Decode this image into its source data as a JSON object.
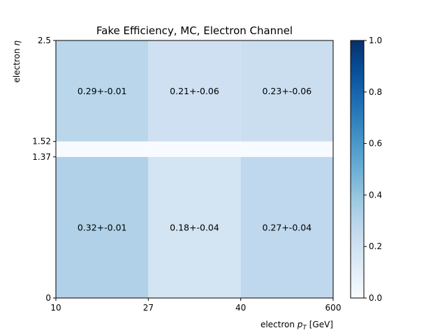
{
  "chart_data": {
    "type": "heatmap",
    "title": "Fake Efficiency, MC, Electron Channel",
    "xlabel_prefix": "electron ",
    "xlabel_var": "p",
    "xlabel_sub": "T",
    "xlabel_suffix": " [GeV]",
    "ylabel_prefix": "electron ",
    "ylabel_var": "η",
    "x_edges": [
      10,
      27,
      40,
      600
    ],
    "x_tick_labels": [
      "10",
      "27",
      "40",
      "600"
    ],
    "y_edges": [
      0,
      1.37,
      1.52,
      2.5
    ],
    "y_tick_labels": [
      "0",
      "1.37",
      "1.52",
      "2.5"
    ],
    "values": [
      [
        0.32,
        0.18,
        0.27
      ],
      [
        0.0,
        0.0,
        0.0
      ],
      [
        0.29,
        0.21,
        0.23
      ]
    ],
    "cell_labels": [
      [
        "0.32+-0.01",
        "0.18+-0.04",
        "0.27+-0.04"
      ],
      [
        "",
        "",
        ""
      ],
      [
        "0.29+-0.01",
        "0.21+-0.06",
        "0.23+-0.06"
      ]
    ],
    "colormap": "Blues",
    "colorbar": {
      "range": [
        0.0,
        1.0
      ],
      "ticks": [
        0.0,
        0.2,
        0.4,
        0.6,
        0.8,
        1.0
      ],
      "tick_labels": [
        "0.0",
        "0.2",
        "0.4",
        "0.6",
        "0.8",
        "1.0"
      ]
    },
    "grid": false
  }
}
